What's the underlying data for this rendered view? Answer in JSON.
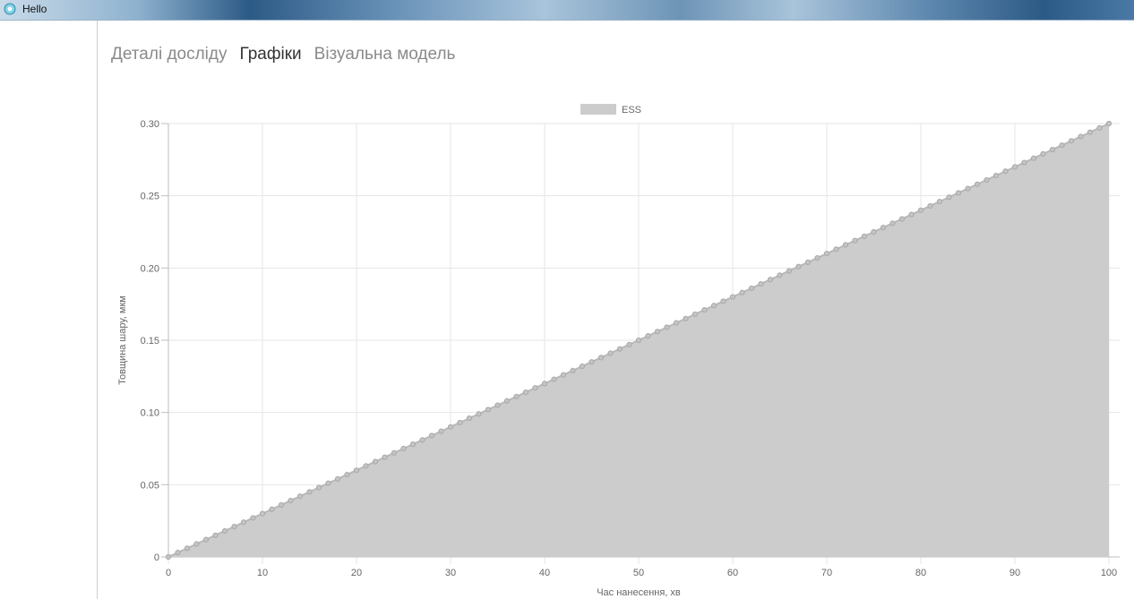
{
  "window": {
    "title": "Hello"
  },
  "tabs": [
    {
      "label": "Деталі досліду",
      "active": false
    },
    {
      "label": "Графіки",
      "active": true
    },
    {
      "label": "Візуальна модель",
      "active": false
    }
  ],
  "colors": {
    "fill": "#cccccc",
    "line": "#b8b8b8",
    "point": "#c4c4c4",
    "grid": "#e6e6e6"
  },
  "chart_data": {
    "type": "area",
    "legend": {
      "label": "ESS",
      "position": "top"
    },
    "xlabel": "Час нанесення, хв",
    "ylabel": "Товщина шару, мкм",
    "xlim": [
      0,
      100
    ],
    "ylim": [
      0,
      0.3
    ],
    "x_ticks": [
      "0",
      "10",
      "20",
      "30",
      "40",
      "50",
      "60",
      "70",
      "80",
      "90",
      "100"
    ],
    "y_ticks": [
      "0",
      "0.05",
      "0.10",
      "0.15",
      "0.20",
      "0.25",
      "0.30"
    ],
    "grid": true,
    "series": [
      {
        "name": "ESS",
        "x_start": 0,
        "x_end": 100,
        "x_step": 1,
        "y_start": 0,
        "y_end": 0.3
      }
    ]
  }
}
